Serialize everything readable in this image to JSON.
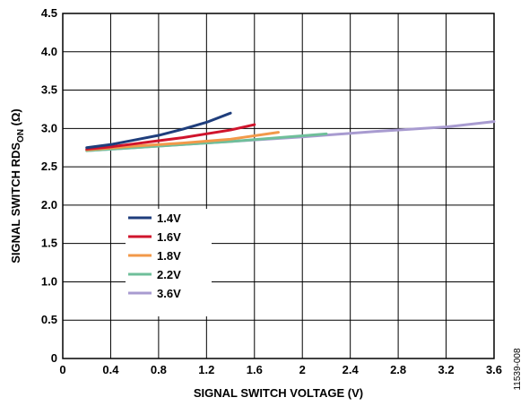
{
  "chart_data": {
    "type": "line",
    "xlabel": "SIGNAL SWITCH VOLTAGE (V)",
    "ylabel_parts": {
      "main": "SIGNAL SWITCH RDS",
      "sub": "ON",
      "unit": " (Ω)"
    },
    "xlim": [
      0,
      3.6
    ],
    "ylim": [
      0,
      4.5
    ],
    "x_ticks": [
      "0",
      "0.4",
      "0.8",
      "1.2",
      "1.6",
      "2",
      "2.4",
      "2.8",
      "3.2",
      "3.6"
    ],
    "y_ticks": [
      "0",
      "0.5",
      "1.0",
      "1.5",
      "2.0",
      "2.5",
      "3.0",
      "3.5",
      "4.0",
      "4.5"
    ],
    "grid": true,
    "legend_position": "lower-left",
    "series": [
      {
        "name": "1.4V",
        "color": "#1f3e7c",
        "x": [
          0.2,
          0.4,
          0.6,
          0.8,
          1.0,
          1.2,
          1.4
        ],
        "y": [
          2.75,
          2.79,
          2.85,
          2.91,
          2.99,
          3.08,
          3.2
        ]
      },
      {
        "name": "1.6V",
        "color": "#d0142c",
        "x": [
          0.2,
          0.4,
          0.6,
          0.8,
          1.0,
          1.2,
          1.4,
          1.6
        ],
        "y": [
          2.73,
          2.76,
          2.8,
          2.84,
          2.88,
          2.93,
          2.98,
          3.05
        ]
      },
      {
        "name": "1.8V",
        "color": "#f2994a",
        "x": [
          0.2,
          0.6,
          1.0,
          1.4,
          1.8
        ],
        "y": [
          2.72,
          2.77,
          2.81,
          2.86,
          2.95
        ]
      },
      {
        "name": "2.2V",
        "color": "#6fbf9a",
        "x": [
          0.2,
          0.6,
          1.0,
          1.4,
          1.8,
          2.2
        ],
        "y": [
          2.71,
          2.75,
          2.79,
          2.83,
          2.88,
          2.93
        ]
      },
      {
        "name": "3.6V",
        "color": "#a89bd0",
        "x": [
          0.2,
          0.8,
          1.4,
          2.0,
          2.6,
          3.2,
          3.6
        ],
        "y": [
          2.71,
          2.77,
          2.83,
          2.89,
          2.96,
          3.02,
          3.09
        ]
      }
    ]
  },
  "figure_id": "11539-008"
}
